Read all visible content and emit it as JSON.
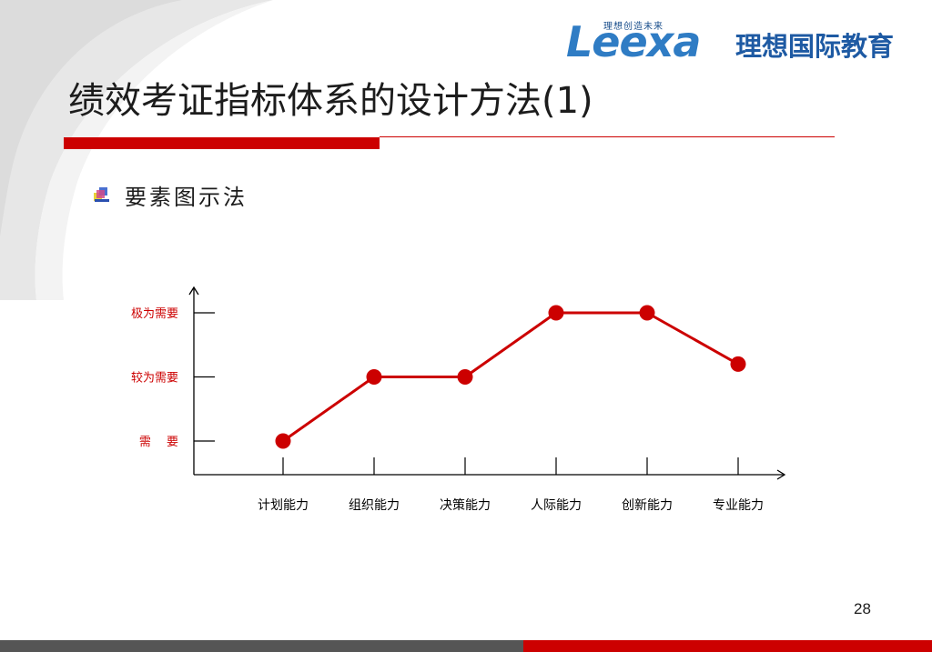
{
  "header": {
    "logo_tagline": "理想创造未来",
    "logo_word": "Leexa",
    "logo_cn": "理想国际教育"
  },
  "slide": {
    "title": "绩效考证指标体系的设计方法(1)",
    "subtitle": "要素图示法",
    "page_number": "28"
  },
  "colors": {
    "accent": "#cc0000",
    "footer_gray": "#555555",
    "brand_blue": "#2f7cc4"
  },
  "icons": {
    "bullet": "square-bullet-icon"
  },
  "chart_data": {
    "type": "line",
    "title": "",
    "xlabel": "",
    "ylabel": "",
    "categories": [
      "计划能力",
      "组织能力",
      "决策能力",
      "人际能力",
      "创新能力",
      "专业能力"
    ],
    "y_levels": [
      "需　 要",
      "较为需要",
      "极为需要"
    ],
    "series": [
      {
        "values": [
          1,
          2,
          2,
          3,
          3,
          2.2
        ]
      }
    ],
    "ylim": [
      1,
      3
    ],
    "grid": false,
    "legend": "none"
  }
}
